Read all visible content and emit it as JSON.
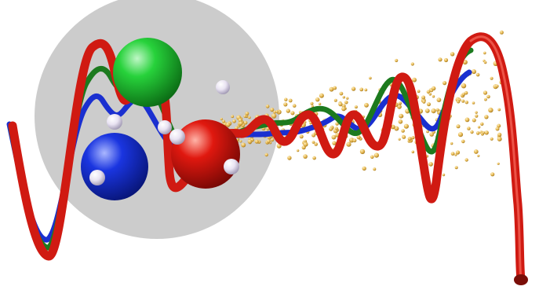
{
  "scene": {
    "background": "#ffffff",
    "disc_color": "#c9c9c9",
    "tubes": [
      {
        "name": "red-tube",
        "color": "#d01a12"
      },
      {
        "name": "green-tube",
        "color": "#1c7a1e"
      },
      {
        "name": "blue-tube",
        "color": "#1a2fd0"
      }
    ],
    "spheres": [
      {
        "name": "green-sphere",
        "color": "#18c12e"
      },
      {
        "name": "blue-sphere",
        "color": "#1a2fd8"
      },
      {
        "name": "red-sphere",
        "color": "#d8140f"
      }
    ],
    "particle_color": "#e2b24a",
    "small_sphere_color": "#e9e3f2"
  }
}
